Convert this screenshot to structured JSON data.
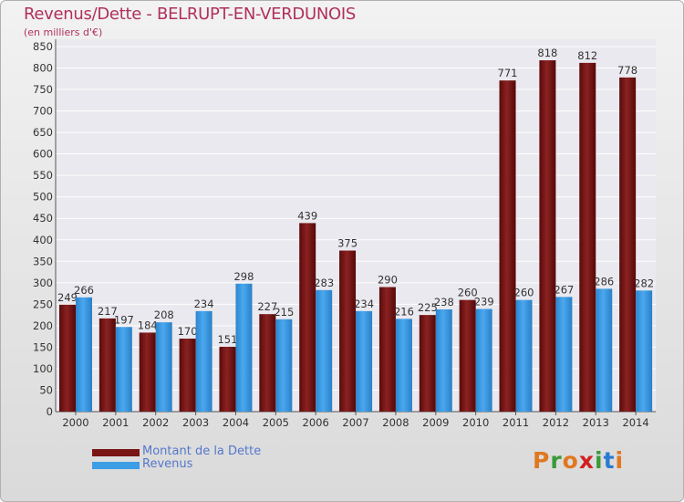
{
  "title": "Revenus/Dette - BELRUPT-EN-VERDUNOIS",
  "subtitle": "(en milliers d'€)",
  "legend": [
    {
      "label": "Montant de la Dette",
      "color": "#7a1515"
    },
    {
      "label": "Revenus",
      "color": "#3d9ee6"
    }
  ],
  "logo": {
    "letters": [
      "P",
      "r",
      "o",
      "x",
      "i",
      "t",
      "i"
    ],
    "colors": [
      "#e07820",
      "#3a9a3a",
      "#e07820",
      "#d02020",
      "#3a9a3a",
      "#2a7ad0",
      "#e07820"
    ]
  },
  "chart_data": {
    "type": "bar",
    "categories": [
      "2000",
      "2001",
      "2002",
      "2003",
      "2004",
      "2005",
      "2006",
      "2007",
      "2008",
      "2009",
      "2010",
      "2011",
      "2012",
      "2013",
      "2014"
    ],
    "series": [
      {
        "name": "Montant de la Dette",
        "color": "#7a1515",
        "values": [
          249,
          217,
          184,
          170,
          151,
          227,
          439,
          375,
          290,
          225,
          260,
          771,
          818,
          812,
          778
        ]
      },
      {
        "name": "Revenus",
        "color": "#3d9ee6",
        "values": [
          266,
          197,
          208,
          234,
          298,
          215,
          283,
          234,
          216,
          238,
          239,
          260,
          267,
          286,
          282
        ]
      }
    ],
    "yticks": [
      0,
      50,
      100,
      150,
      200,
      250,
      300,
      350,
      400,
      450,
      500,
      550,
      600,
      650,
      700,
      750,
      800,
      850
    ],
    "ylim": [
      0,
      850
    ],
    "grid": true
  }
}
